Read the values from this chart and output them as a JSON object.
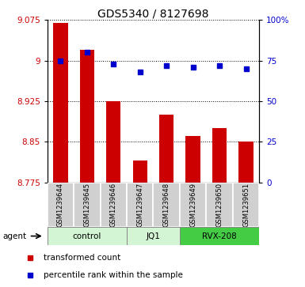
{
  "title": "GDS5340 / 8127698",
  "samples": [
    "GSM1239644",
    "GSM1239645",
    "GSM1239646",
    "GSM1239647",
    "GSM1239648",
    "GSM1239649",
    "GSM1239650",
    "GSM1239651"
  ],
  "red_values": [
    9.07,
    9.02,
    8.925,
    8.815,
    8.9,
    8.86,
    8.875,
    8.85
  ],
  "blue_values": [
    75,
    80,
    73,
    68,
    72,
    71,
    72,
    70
  ],
  "ylim_left": [
    8.775,
    9.075
  ],
  "ylim_right": [
    0,
    100
  ],
  "yticks_left": [
    8.775,
    8.85,
    8.925,
    9.0,
    9.075
  ],
  "yticks_right": [
    0,
    25,
    50,
    75,
    100
  ],
  "ytick_labels_left": [
    "8.775",
    "8.85",
    "8.925",
    "9",
    "9.075"
  ],
  "ytick_labels_right": [
    "0",
    "25",
    "50",
    "75",
    "100%"
  ],
  "group_ranges": [
    [
      0,
      3
    ],
    [
      3,
      5
    ],
    [
      5,
      8
    ]
  ],
  "group_labels": [
    "control",
    "JQ1",
    "RVX-208"
  ],
  "group_colors": [
    "#d4f5d4",
    "#d4f5d4",
    "#44cc44"
  ],
  "agent_label": "agent",
  "legend_red": "transformed count",
  "legend_blue": "percentile rank within the sample",
  "bar_color": "#cc0000",
  "dot_color": "#0000cc",
  "bar_bottom": 8.775,
  "bg_color": "#ffffff",
  "gray_label_color": "#cccccc",
  "grid_linestyle": ":",
  "grid_linewidth": 0.7,
  "grid_color": "#000000",
  "bar_width": 0.55,
  "dot_size": 5
}
